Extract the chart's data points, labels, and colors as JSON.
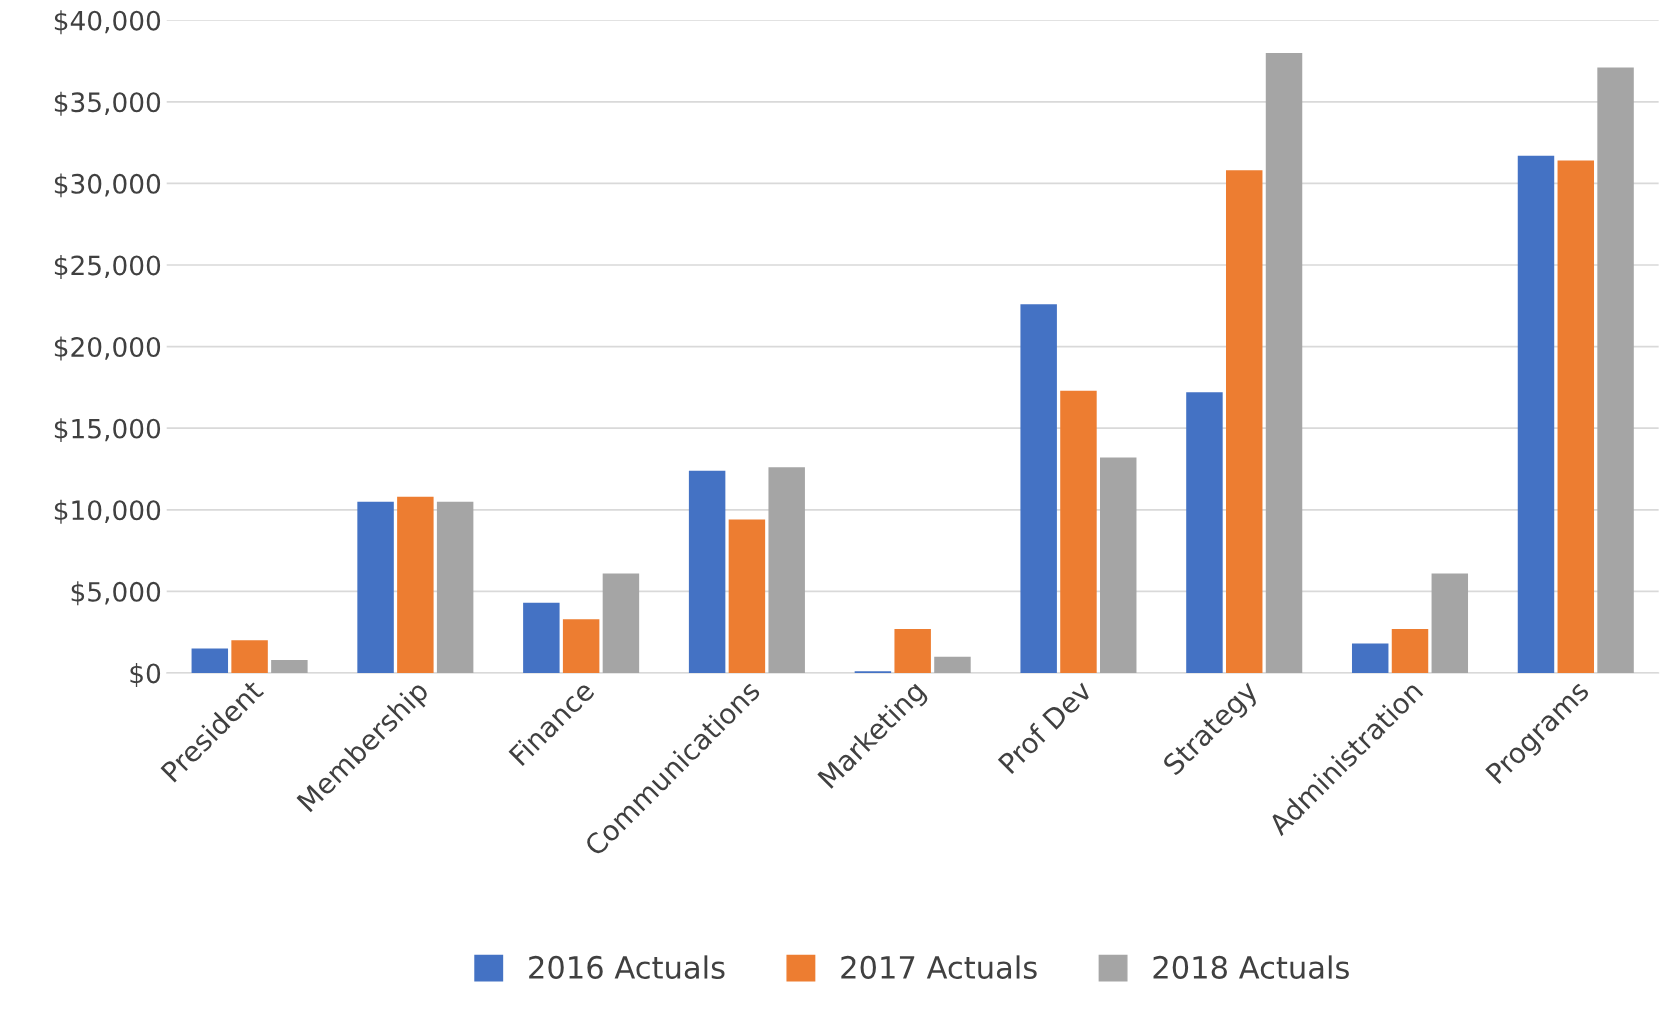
{
  "chart_data": {
    "type": "bar",
    "categories": [
      "President",
      "Membership",
      "Finance",
      "Communications",
      "Marketing",
      "Prof Dev",
      "Strategy",
      "Administration",
      "Programs"
    ],
    "series": [
      {
        "name": "2016 Actuals",
        "color": "#4472c4",
        "values": [
          1500,
          10500,
          4300,
          12400,
          100,
          22600,
          17200,
          1800,
          31700
        ]
      },
      {
        "name": "2017 Actuals",
        "color": "#ed7d31",
        "values": [
          2000,
          10800,
          3300,
          9400,
          2700,
          17300,
          30800,
          2700,
          31400
        ]
      },
      {
        "name": "2018 Actuals",
        "color": "#a5a5a5",
        "values": [
          800,
          10500,
          6100,
          12600,
          1000,
          13200,
          38000,
          6100,
          37100
        ]
      }
    ],
    "ylim": [
      0,
      40000
    ],
    "yticks": [
      {
        "value": 0,
        "label": "$0"
      },
      {
        "value": 5000,
        "label": "$5,000"
      },
      {
        "value": 10000,
        "label": "$10,000"
      },
      {
        "value": 15000,
        "label": "$15,000"
      },
      {
        "value": 20000,
        "label": "$20,000"
      },
      {
        "value": 25000,
        "label": "$25,000"
      },
      {
        "value": 30000,
        "label": "$30,000"
      },
      {
        "value": 35000,
        "label": "$35,000"
      },
      {
        "value": 40000,
        "label": "$40,000"
      }
    ],
    "grid": "y",
    "legend": "bottom"
  }
}
